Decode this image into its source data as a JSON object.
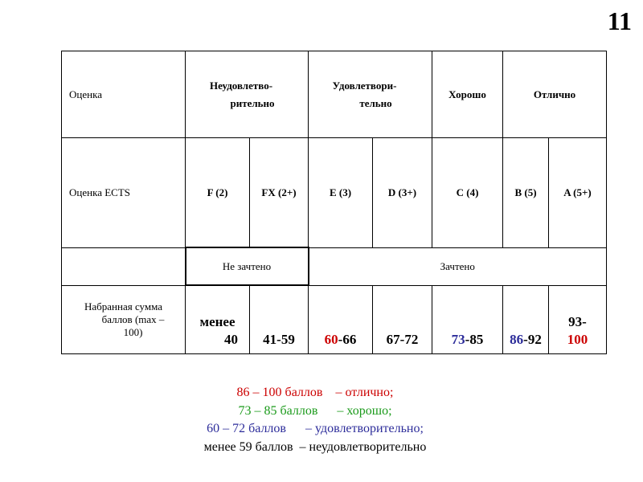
{
  "slide_number": "11",
  "table": {
    "row_grade": {
      "label": "Оценка",
      "unsatisfactory": [
        "Неудовлетво-",
        "рительно"
      ],
      "satisfactory": [
        "Удовлетвори-",
        "тельно"
      ],
      "good": "Хорошо",
      "excellent": "Отлично"
    },
    "row_ects": {
      "label": "Оценка ECTS",
      "grades": [
        "F (2)",
        "FX (2+)",
        "E (3)",
        "D (3+)",
        "C (4)",
        "B (5)",
        "A (5+)"
      ]
    },
    "row_pass": {
      "not_passed": "Не зачтено",
      "passed": "Зачтено"
    },
    "row_score": {
      "label": [
        "Набранная сумма",
        "баллов (max –",
        "100)"
      ],
      "f": [
        "менее",
        "40"
      ],
      "fx": "41-59",
      "e": {
        "low": "60",
        "high": "-66"
      },
      "d": "67-72",
      "c": {
        "low": "73",
        "high": "-85"
      },
      "b": {
        "low": "86",
        "high": "-92"
      },
      "a": {
        "low": "93-",
        "high": "100"
      }
    }
  },
  "legend": [
    {
      "text": "86 – 100 баллов    – отлично;",
      "color": "#cc0000"
    },
    {
      "text": "73 – 85 баллов      – хорошо;",
      "color": "#1a9a1a"
    },
    {
      "text": "60 – 72 баллов      – удовлетворительно;",
      "color": "#2c2c9a"
    },
    {
      "text": "менее 59 баллов  – неудовлетворительно",
      "color": "#000000"
    }
  ],
  "colors": {
    "red": "#cc0000",
    "blue": "#2c2c9a",
    "green": "#1a9a1a"
  }
}
